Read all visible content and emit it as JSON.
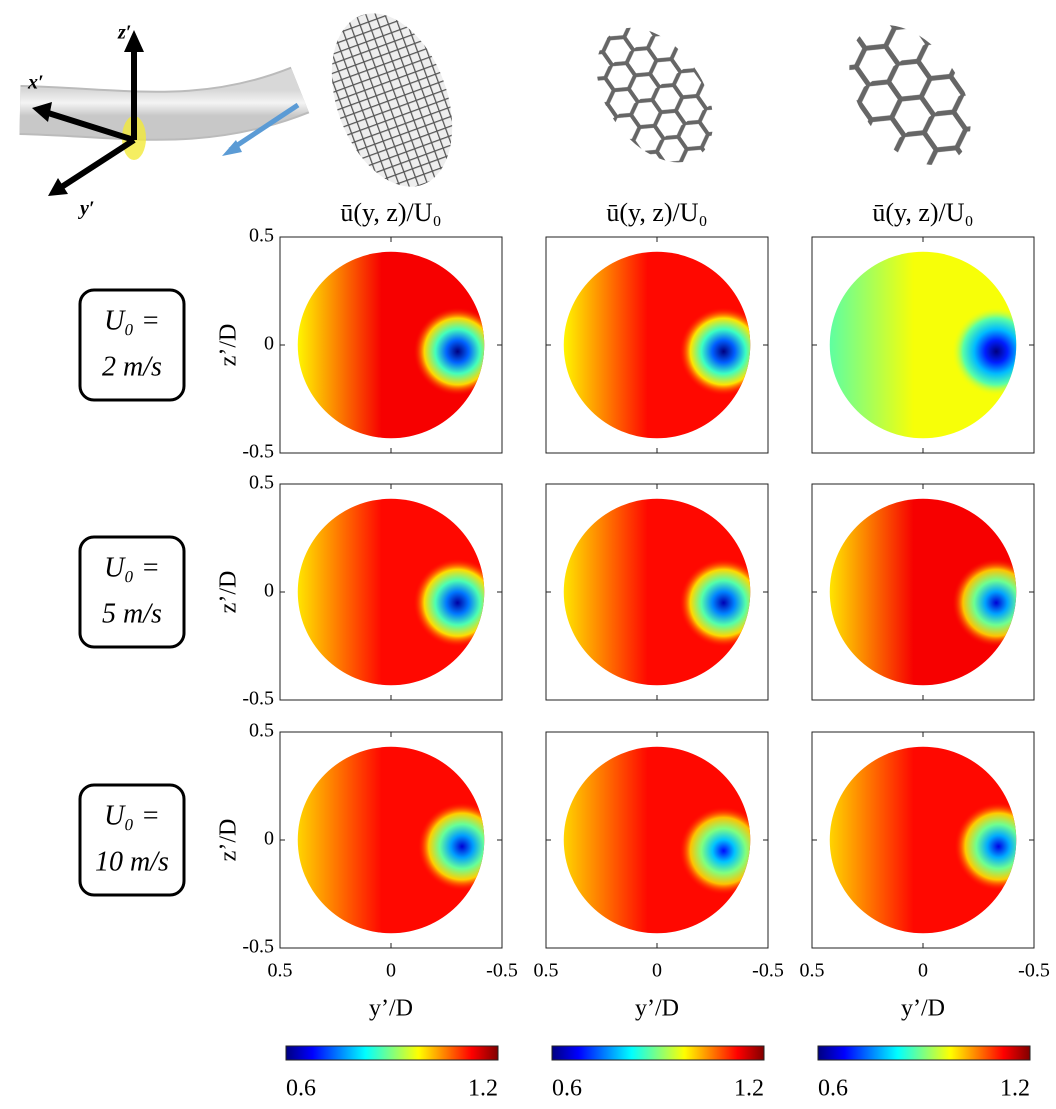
{
  "figure": {
    "axis_labels": {
      "x": "x′",
      "y": "y′",
      "z": "z′"
    },
    "row_labels": [
      {
        "line1": "U₀ =",
        "line2": "2 m/s"
      },
      {
        "line1": "U₀ =",
        "line2": "5 m/s"
      },
      {
        "line1": "U₀ =",
        "line2": "10 m/s"
      }
    ]
  },
  "colorbars": [
    {
      "clim": [
        0.6,
        1.2
      ],
      "ticks": [
        0.6,
        1.2
      ]
    },
    {
      "clim": [
        0.6,
        1.2
      ],
      "ticks": [
        0.6,
        1.2
      ]
    },
    {
      "clim": [
        0.6,
        1.2
      ],
      "ticks": [
        0.6,
        1.2
      ]
    }
  ],
  "chart_data": [
    {
      "type": "contour",
      "title": "ū(y, z)/U₀",
      "ylabel": "z’/D",
      "xlim": [
        0.5,
        -0.5
      ],
      "ylim": [
        -0.5,
        0.5
      ],
      "xticks": [
        0.5,
        0,
        -0.5
      ],
      "yticks": [
        0.5,
        0,
        -0.5
      ],
      "field": {
        "left": 0.98,
        "center": 1.13,
        "min": 0.6,
        "min_at": [
          -0.3,
          -0.03
        ]
      }
    },
    {
      "type": "contour",
      "title": "ū(y, z)/U₀",
      "xlim": [
        0.5,
        -0.5
      ],
      "ylim": [
        -0.5,
        0.5
      ],
      "xticks": [
        0.5,
        0,
        -0.5
      ],
      "yticks": [
        0.5,
        0,
        -0.5
      ],
      "field": {
        "left": 0.98,
        "center": 1.12,
        "min": 0.6,
        "min_at": [
          -0.3,
          -0.03
        ]
      }
    },
    {
      "type": "contour",
      "title": "ū(y, z)/U₀",
      "xlim": [
        0.5,
        -0.5
      ],
      "ylim": [
        -0.5,
        0.5
      ],
      "xticks": [
        0.5,
        0,
        -0.5
      ],
      "yticks": [
        0.5,
        0,
        -0.5
      ],
      "field": {
        "left": 0.88,
        "center": 0.97,
        "min": 0.6,
        "min_at": [
          -0.33,
          -0.03
        ]
      }
    },
    {
      "type": "contour",
      "ylabel": "z’/D",
      "xlim": [
        0.5,
        -0.5
      ],
      "ylim": [
        -0.5,
        0.5
      ],
      "xticks": [
        0.5,
        0,
        -0.5
      ],
      "yticks": [
        0.5,
        0,
        -0.5
      ],
      "field": {
        "left": 0.99,
        "center": 1.12,
        "min": 0.62,
        "min_at": [
          -0.3,
          -0.05
        ]
      }
    },
    {
      "type": "contour",
      "xlim": [
        0.5,
        -0.5
      ],
      "ylim": [
        -0.5,
        0.5
      ],
      "xticks": [
        0.5,
        0,
        -0.5
      ],
      "yticks": [
        0.5,
        0,
        -0.5
      ],
      "field": {
        "left": 0.99,
        "center": 1.12,
        "min": 0.63,
        "min_at": [
          -0.3,
          -0.05
        ]
      }
    },
    {
      "type": "contour",
      "xlim": [
        0.5,
        -0.5
      ],
      "ylim": [
        -0.5,
        0.5
      ],
      "xticks": [
        0.5,
        0,
        -0.5
      ],
      "yticks": [
        0.5,
        0,
        -0.5
      ],
      "field": {
        "left": 0.99,
        "center": 1.13,
        "min": 0.65,
        "min_at": [
          -0.33,
          -0.05
        ]
      }
    },
    {
      "type": "contour",
      "ylabel": "z’/D",
      "xlabel": "y’/D",
      "xlim": [
        0.5,
        -0.5
      ],
      "ylim": [
        -0.5,
        0.5
      ],
      "xticks": [
        0.5,
        0,
        -0.5
      ],
      "yticks": [
        0.5,
        0,
        -0.5
      ],
      "field": {
        "left": 1.0,
        "center": 1.12,
        "min": 0.65,
        "min_at": [
          -0.32,
          -0.03
        ]
      }
    },
    {
      "type": "contour",
      "xlabel": "y’/D",
      "xlim": [
        0.5,
        -0.5
      ],
      "ylim": [
        -0.5,
        0.5
      ],
      "xticks": [
        0.5,
        0,
        -0.5
      ],
      "yticks": [
        0.5,
        0,
        -0.5
      ],
      "field": {
        "left": 1.0,
        "center": 1.12,
        "min": 0.68,
        "min_at": [
          -0.3,
          -0.05
        ]
      }
    },
    {
      "type": "contour",
      "xlabel": "y’/D",
      "xlim": [
        0.5,
        -0.5
      ],
      "ylim": [
        -0.5,
        0.5
      ],
      "xticks": [
        0.5,
        0,
        -0.5
      ],
      "yticks": [
        0.5,
        0,
        -0.5
      ],
      "field": {
        "left": 1.0,
        "center": 1.12,
        "min": 0.66,
        "min_at": [
          -0.34,
          -0.03
        ]
      }
    }
  ]
}
